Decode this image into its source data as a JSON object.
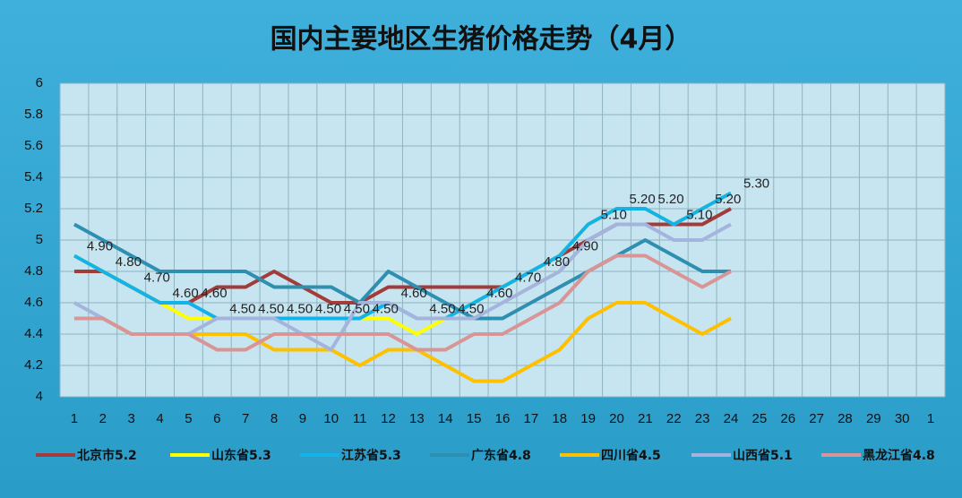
{
  "chart_data": {
    "type": "line",
    "title": "国内主要地区生猪价格走势（4月）",
    "categories": [
      "1",
      "2",
      "3",
      "4",
      "5",
      "6",
      "7",
      "8",
      "9",
      "10",
      "11",
      "12",
      "13",
      "14",
      "15",
      "16",
      "17",
      "18",
      "19",
      "20",
      "21",
      "22",
      "23",
      "24",
      "25",
      "26",
      "27",
      "28",
      "29",
      "30",
      "1"
    ],
    "ylim": [
      4,
      6
    ],
    "yticks": [
      4,
      4.2,
      4.4,
      4.6,
      4.8,
      5,
      5.2,
      5.4,
      5.6,
      5.8,
      6
    ],
    "grid": true,
    "legend": "bottom",
    "series": [
      {
        "name": "北京市5.2",
        "color": "#a33b3b",
        "values": [
          4.8,
          4.8,
          4.7,
          4.6,
          4.6,
          4.7,
          4.7,
          4.8,
          4.7,
          4.6,
          4.6,
          4.7,
          4.7,
          4.7,
          4.7,
          4.7,
          4.8,
          4.9,
          5.0,
          5.1,
          5.1,
          5.1,
          5.1,
          5.2,
          null,
          null,
          null,
          null,
          null,
          null,
          null
        ]
      },
      {
        "name": "山东省5.3",
        "color": "#ffff00",
        "values": [
          4.9,
          4.8,
          4.7,
          4.6,
          4.5,
          4.5,
          4.5,
          4.5,
          4.5,
          4.5,
          4.5,
          4.5,
          4.4,
          4.5,
          4.6,
          4.7,
          4.8,
          4.9,
          5.1,
          5.2,
          5.2,
          5.1,
          5.2,
          5.3,
          null,
          null,
          null,
          null,
          null,
          null,
          null
        ]
      },
      {
        "name": "江苏省5.3",
        "color": "#13b2e8",
        "values": [
          4.9,
          4.8,
          4.7,
          4.6,
          4.6,
          4.5,
          4.5,
          4.5,
          4.5,
          4.5,
          4.5,
          4.6,
          4.5,
          4.5,
          4.6,
          4.7,
          4.8,
          4.9,
          5.1,
          5.2,
          5.2,
          5.1,
          5.2,
          5.3,
          null,
          null,
          null,
          null,
          null,
          null,
          null
        ],
        "value_labels": [
          "4.90",
          "4.80",
          "4.70",
          "4.60",
          "4.60",
          "4.50",
          "4.50",
          "4.50",
          "4.50",
          "4.50",
          "4.50",
          "4.60",
          "4.50",
          "4.50",
          "4.60",
          "4.70",
          "4.80",
          "4.90",
          "5.10",
          "5.20",
          "5.20",
          "5.10",
          "5.20",
          "5.30",
          null,
          null,
          null,
          null,
          null,
          null,
          null
        ]
      },
      {
        "name": "广东省4.8",
        "color": "#2e8fb0",
        "values": [
          5.1,
          5.0,
          4.9,
          4.8,
          4.8,
          4.8,
          4.8,
          4.7,
          4.7,
          4.7,
          4.6,
          4.8,
          4.7,
          4.6,
          4.5,
          4.5,
          4.6,
          4.7,
          4.8,
          4.9,
          5.0,
          4.9,
          4.8,
          4.8,
          null,
          null,
          null,
          null,
          null,
          null,
          null
        ]
      },
      {
        "name": "四川省4.5",
        "color": "#ffc000",
        "values": [
          4.5,
          4.5,
          4.4,
          4.4,
          4.4,
          4.4,
          4.4,
          4.3,
          4.3,
          4.3,
          4.2,
          4.3,
          4.3,
          4.2,
          4.1,
          4.1,
          4.2,
          4.3,
          4.5,
          4.6,
          4.6,
          4.5,
          4.4,
          4.5,
          null,
          null,
          null,
          null,
          null,
          null,
          null
        ]
      },
      {
        "name": "山西省5.1",
        "color": "#a5b4dc",
        "values": [
          4.6,
          4.5,
          4.4,
          4.4,
          4.4,
          4.5,
          4.5,
          4.5,
          4.4,
          4.3,
          4.6,
          4.6,
          4.5,
          4.5,
          4.5,
          4.6,
          4.7,
          4.8,
          5.0,
          5.1,
          5.1,
          5.0,
          5.0,
          5.1,
          null,
          null,
          null,
          null,
          null,
          null,
          null
        ]
      },
      {
        "name": "黑龙江省4.8",
        "color": "#d99595",
        "values": [
          4.5,
          4.5,
          4.4,
          4.4,
          4.4,
          4.3,
          4.3,
          4.4,
          4.4,
          4.4,
          4.4,
          4.4,
          4.3,
          4.3,
          4.4,
          4.4,
          4.5,
          4.6,
          4.8,
          4.9,
          4.9,
          4.8,
          4.7,
          4.8,
          null,
          null,
          null,
          null,
          null,
          null,
          null
        ]
      }
    ]
  }
}
